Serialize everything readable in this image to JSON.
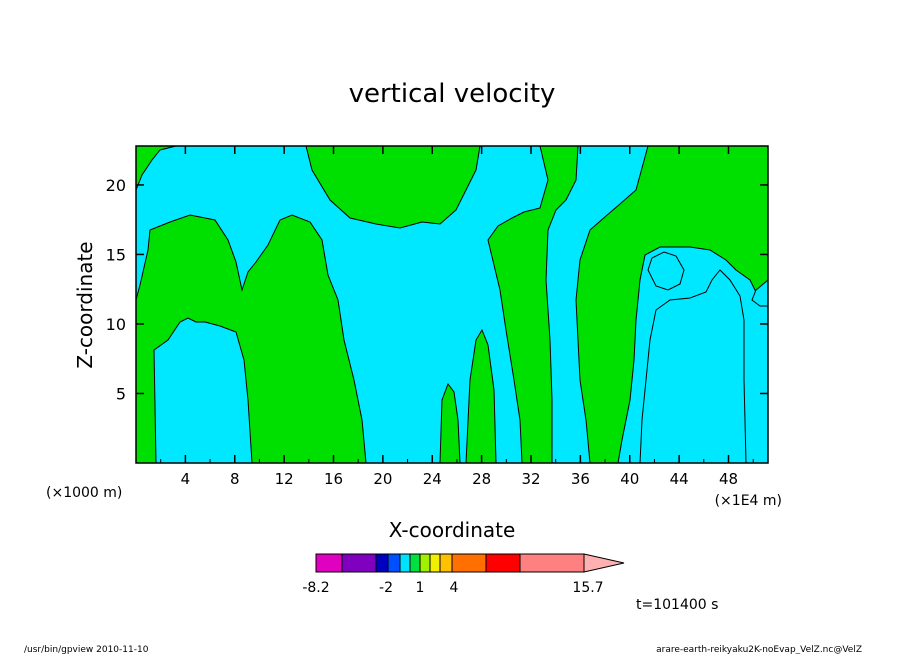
{
  "chart_data": {
    "type": "heatmap",
    "title": "vertical velocity",
    "xlabel": "X-coordinate",
    "ylabel": "Z-coordinate",
    "x_axis_unit_left": "(×1000 m)",
    "x_axis_unit_right": "(×1E4 m)",
    "xlim": [
      0,
      51.2
    ],
    "ylim": [
      0,
      22.8
    ],
    "x_ticks": [
      "4",
      "8",
      "12",
      "16",
      "20",
      "24",
      "28",
      "32",
      "36",
      "40",
      "44",
      "48"
    ],
    "y_ticks": [
      "5",
      "10",
      "15",
      "20"
    ],
    "grid": false,
    "colorbar": {
      "label_values": [
        "-8.2",
        "-2",
        "1",
        "4",
        "15.7"
      ],
      "bins": [
        "#e000c0",
        "#8000c0",
        "#0000c0",
        "#0050ff",
        "#00e0ff",
        "#00e040",
        "#a0f000",
        "#f0f000",
        "#ffc000",
        "#ff7000",
        "#ff0000",
        "#ff8080"
      ],
      "extend_color": "#ffb0b0"
    },
    "dominant_regions": [
      {
        "color": "#00e0ff",
        "meaning": "cyan band"
      },
      {
        "color": "#00e000",
        "meaning": "green band"
      }
    ],
    "time_label": "t=101400 s"
  },
  "footer": {
    "left": "/usr/bin/gpview   2010-11-10",
    "right": "arare-earth-reikyaku2K-noEvap_VelZ.nc@VelZ"
  }
}
